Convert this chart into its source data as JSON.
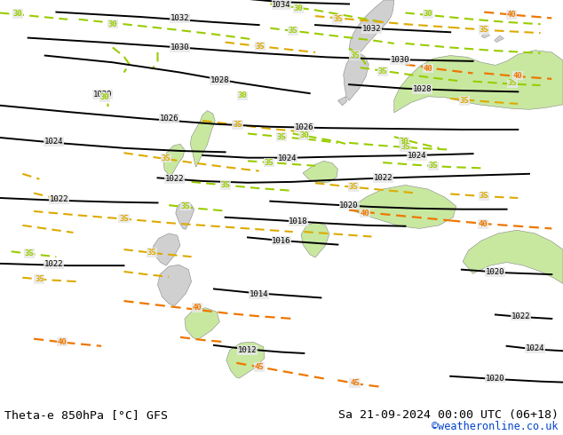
{
  "title_left": "Theta-e 850hPa [°C] GFS",
  "title_right": "Sa 21-09-2024 00:00 UTC (06+18)",
  "credit": "©weatheronline.co.uk",
  "ocean_color": "#e8e8e8",
  "land_color": "#d0d0d0",
  "green_area_color": "#c8e8a0",
  "font_family": "monospace",
  "bottom_bar_color": "#ffffff",
  "pressure_line_color": "#000000",
  "theta_green_color": "#99cc00",
  "theta_yellow_color": "#ddaa00",
  "theta_orange_color": "#ee7700",
  "fig_width": 6.34,
  "fig_height": 4.9,
  "dpi": 100
}
